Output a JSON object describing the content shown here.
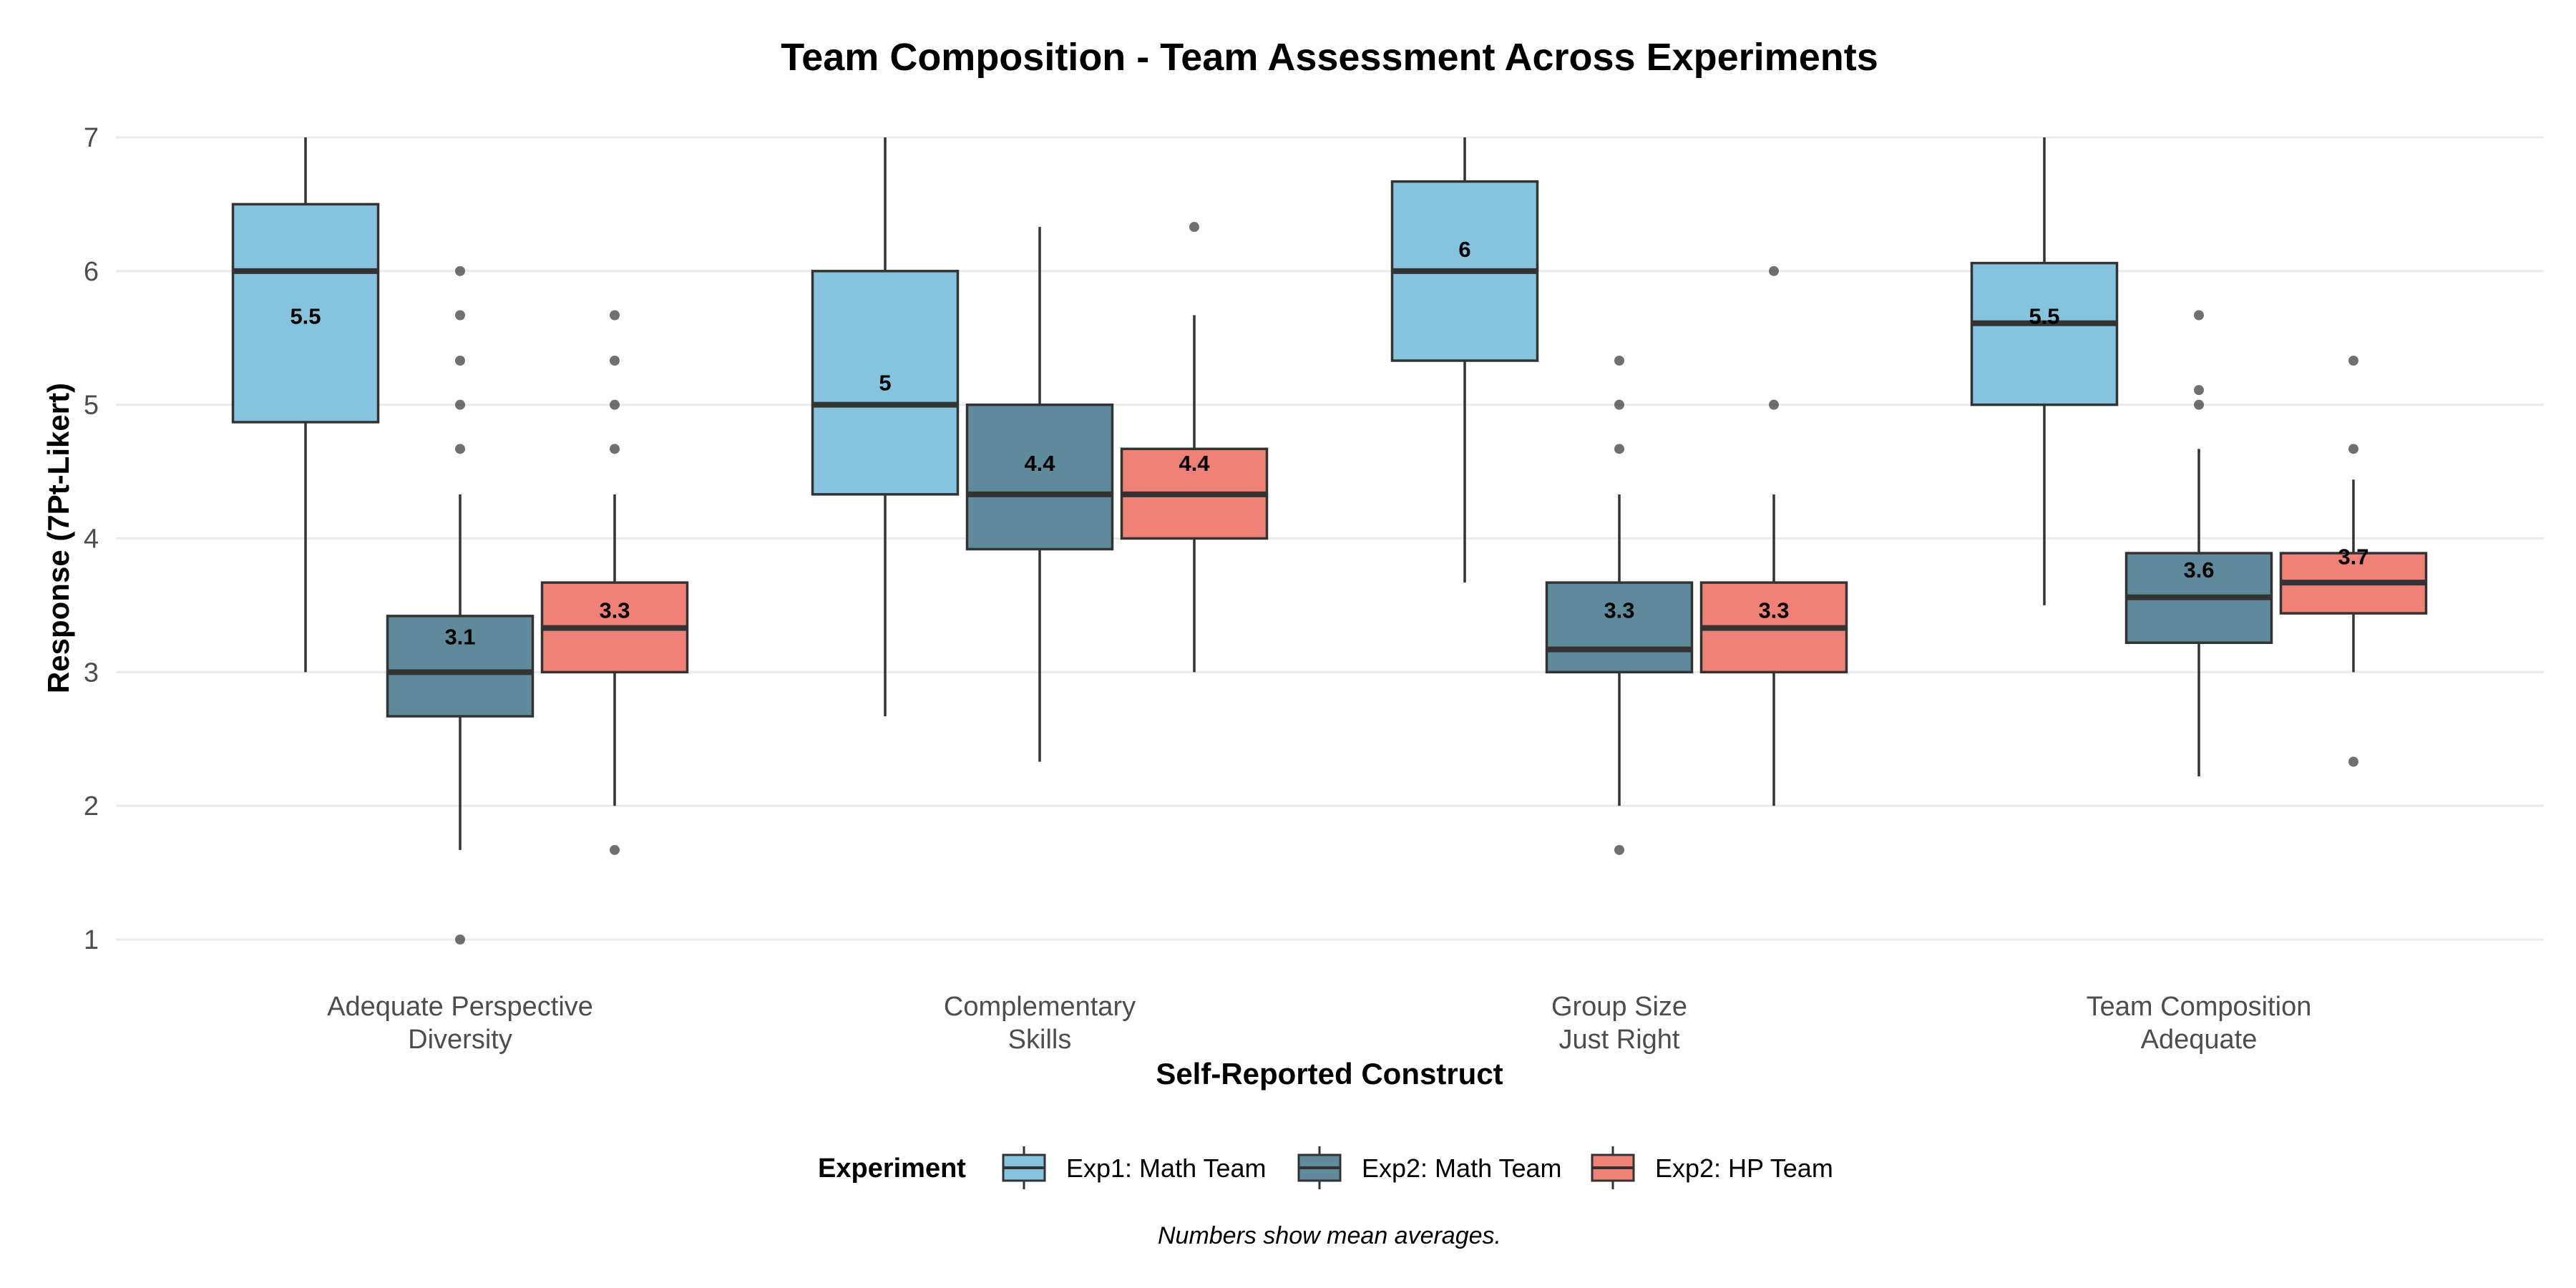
{
  "chart_data": {
    "type": "box",
    "title": "Team Composition - Team Assessment Across Experiments",
    "xlabel": "Self-Reported Construct",
    "ylabel": "Response (7Pt-Likert)",
    "ylim": [
      1,
      7
    ],
    "yticks": [
      1,
      2,
      3,
      4,
      5,
      6,
      7
    ],
    "grid": true,
    "legend": {
      "title": "Experiment",
      "placement": "bottom"
    },
    "caption": "Numbers show mean averages.",
    "categories": [
      [
        "Adequate Perspective",
        "Diversity"
      ],
      [
        "Complementary",
        "Skills"
      ],
      [
        "Group Size",
        "Just Right"
      ],
      [
        "Team Composition",
        "Adequate"
      ]
    ],
    "series": [
      {
        "name": "Exp1: Math Team",
        "color": "#86C3DE",
        "boxes": [
          {
            "whisker_low": 3.0,
            "q1": 4.87,
            "median": 6.0,
            "q3": 6.5,
            "whisker_high": 7.0,
            "mean": 5.5,
            "mean_label": "5.5",
            "outliers": []
          },
          {
            "whisker_low": 2.67,
            "q1": 4.33,
            "median": 5.0,
            "q3": 6.0,
            "whisker_high": 7.0,
            "mean": 5.0,
            "mean_label": "5",
            "outliers": []
          },
          {
            "whisker_low": 3.67,
            "q1": 5.33,
            "median": 6.0,
            "q3": 6.67,
            "whisker_high": 7.0,
            "mean": 6.0,
            "mean_label": "6",
            "outliers": []
          },
          {
            "whisker_low": 3.5,
            "q1": 5.0,
            "median": 5.61,
            "q3": 6.06,
            "whisker_high": 7.0,
            "mean": 5.5,
            "mean_label": "5.5",
            "outliers": []
          }
        ]
      },
      {
        "name": "Exp2: Math Team",
        "color": "#5F8A9B",
        "boxes": [
          {
            "whisker_low": 1.67,
            "q1": 2.67,
            "median": 3.0,
            "q3": 3.42,
            "whisker_high": 4.33,
            "mean": 3.1,
            "mean_label": "3.1",
            "outliers": [
              1.0,
              4.67,
              5.0,
              5.33,
              5.67,
              6.0
            ]
          },
          {
            "whisker_low": 2.33,
            "q1": 3.92,
            "median": 4.33,
            "q3": 5.0,
            "whisker_high": 6.33,
            "mean": 4.4,
            "mean_label": "4.4",
            "outliers": []
          },
          {
            "whisker_low": 2.0,
            "q1": 3.0,
            "median": 3.17,
            "q3": 3.67,
            "whisker_high": 4.33,
            "mean": 3.3,
            "mean_label": "3.3",
            "outliers": [
              1.67,
              4.67,
              5.0,
              5.33
            ]
          },
          {
            "whisker_low": 2.22,
            "q1": 3.22,
            "median": 3.56,
            "q3": 3.89,
            "whisker_high": 4.67,
            "mean": 3.6,
            "mean_label": "3.6",
            "outliers": [
              5.0,
              5.11,
              5.67
            ]
          }
        ]
      },
      {
        "name": "Exp2: HP Team",
        "color": "#F08176",
        "boxes": [
          {
            "whisker_low": 2.0,
            "q1": 3.0,
            "median": 3.33,
            "q3": 3.67,
            "whisker_high": 4.33,
            "mean": 3.3,
            "mean_label": "3.3",
            "outliers": [
              1.67,
              4.67,
              5.0,
              5.33,
              5.67
            ]
          },
          {
            "whisker_low": 3.0,
            "q1": 4.0,
            "median": 4.33,
            "q3": 4.67,
            "whisker_high": 5.67,
            "mean": 4.4,
            "mean_label": "4.4",
            "outliers": [
              6.33
            ]
          },
          {
            "whisker_low": 2.0,
            "q1": 3.0,
            "median": 3.33,
            "q3": 3.67,
            "whisker_high": 4.33,
            "mean": 3.3,
            "mean_label": "3.3",
            "outliers": [
              5.0,
              6.0
            ]
          },
          {
            "whisker_low": 3.0,
            "q1": 3.44,
            "median": 3.67,
            "q3": 3.89,
            "whisker_high": 4.44,
            "mean": 3.7,
            "mean_label": "3.7",
            "outliers": [
              2.33,
              4.67,
              5.33
            ]
          }
        ]
      }
    ]
  }
}
